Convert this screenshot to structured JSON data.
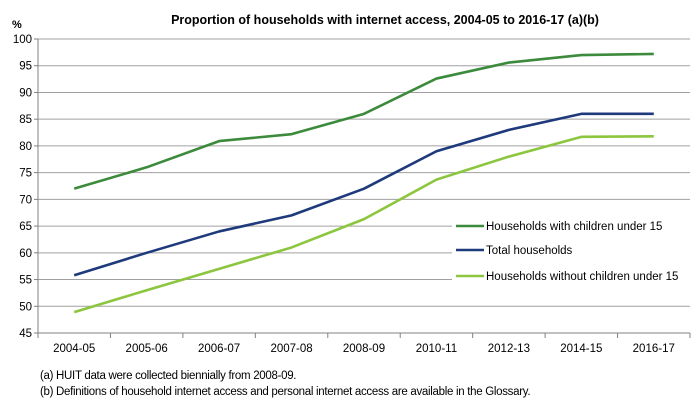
{
  "chart_data": {
    "type": "line",
    "title": "Proportion of households  with internet access,  2004-05  to 2016-17  (a)(b)",
    "ylabel": "%",
    "xlabel": "",
    "ylim": [
      45,
      100
    ],
    "yticks": [
      45,
      50,
      55,
      60,
      65,
      70,
      75,
      80,
      85,
      90,
      95,
      100
    ],
    "grid": true,
    "legend_placement": "right",
    "categories": [
      "2004-05",
      "2005-06",
      "2006-07",
      "2007-08",
      "2008-09",
      "2010-11",
      "2012-13",
      "2014-15",
      "2016-17"
    ],
    "series": [
      {
        "name": "Households with children under 15",
        "color": "#3c8a3c",
        "values": [
          72,
          76,
          80.9,
          82.2,
          86,
          92.6,
          95.6,
          97,
          97.2
        ]
      },
      {
        "name": "Total households",
        "color": "#1f3a7c",
        "values": [
          55.8,
          60,
          64,
          67,
          72,
          79,
          83,
          86,
          86
        ]
      },
      {
        "name": "Households without children under 15",
        "color": "#8cc63f",
        "values": [
          48.9,
          53,
          57,
          61,
          66.3,
          73.7,
          78,
          81.7,
          81.8
        ]
      }
    ]
  },
  "footnotes": [
    "(a) HUIT data were collected biennially from 2008-09.",
    "(b) Definitions of household internet access and personal internet access are available in the Glossary."
  ]
}
